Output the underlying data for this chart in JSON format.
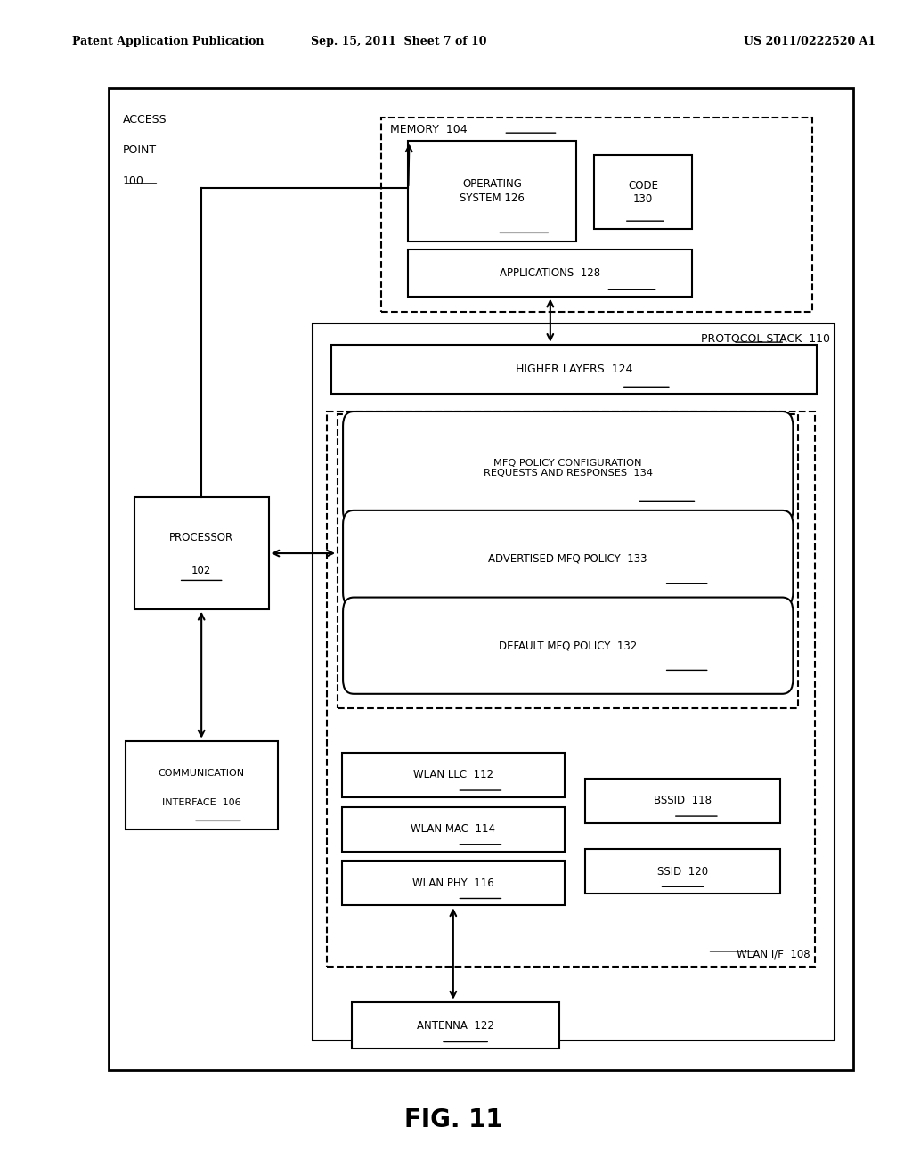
{
  "fig_label": "FIG. 11",
  "header_left": "Patent Application Publication",
  "header_mid": "Sep. 15, 2011  Sheet 7 of 10",
  "header_right": "US 2011/0222520 A1",
  "bg_color": "#ffffff",
  "line_color": "#000000"
}
